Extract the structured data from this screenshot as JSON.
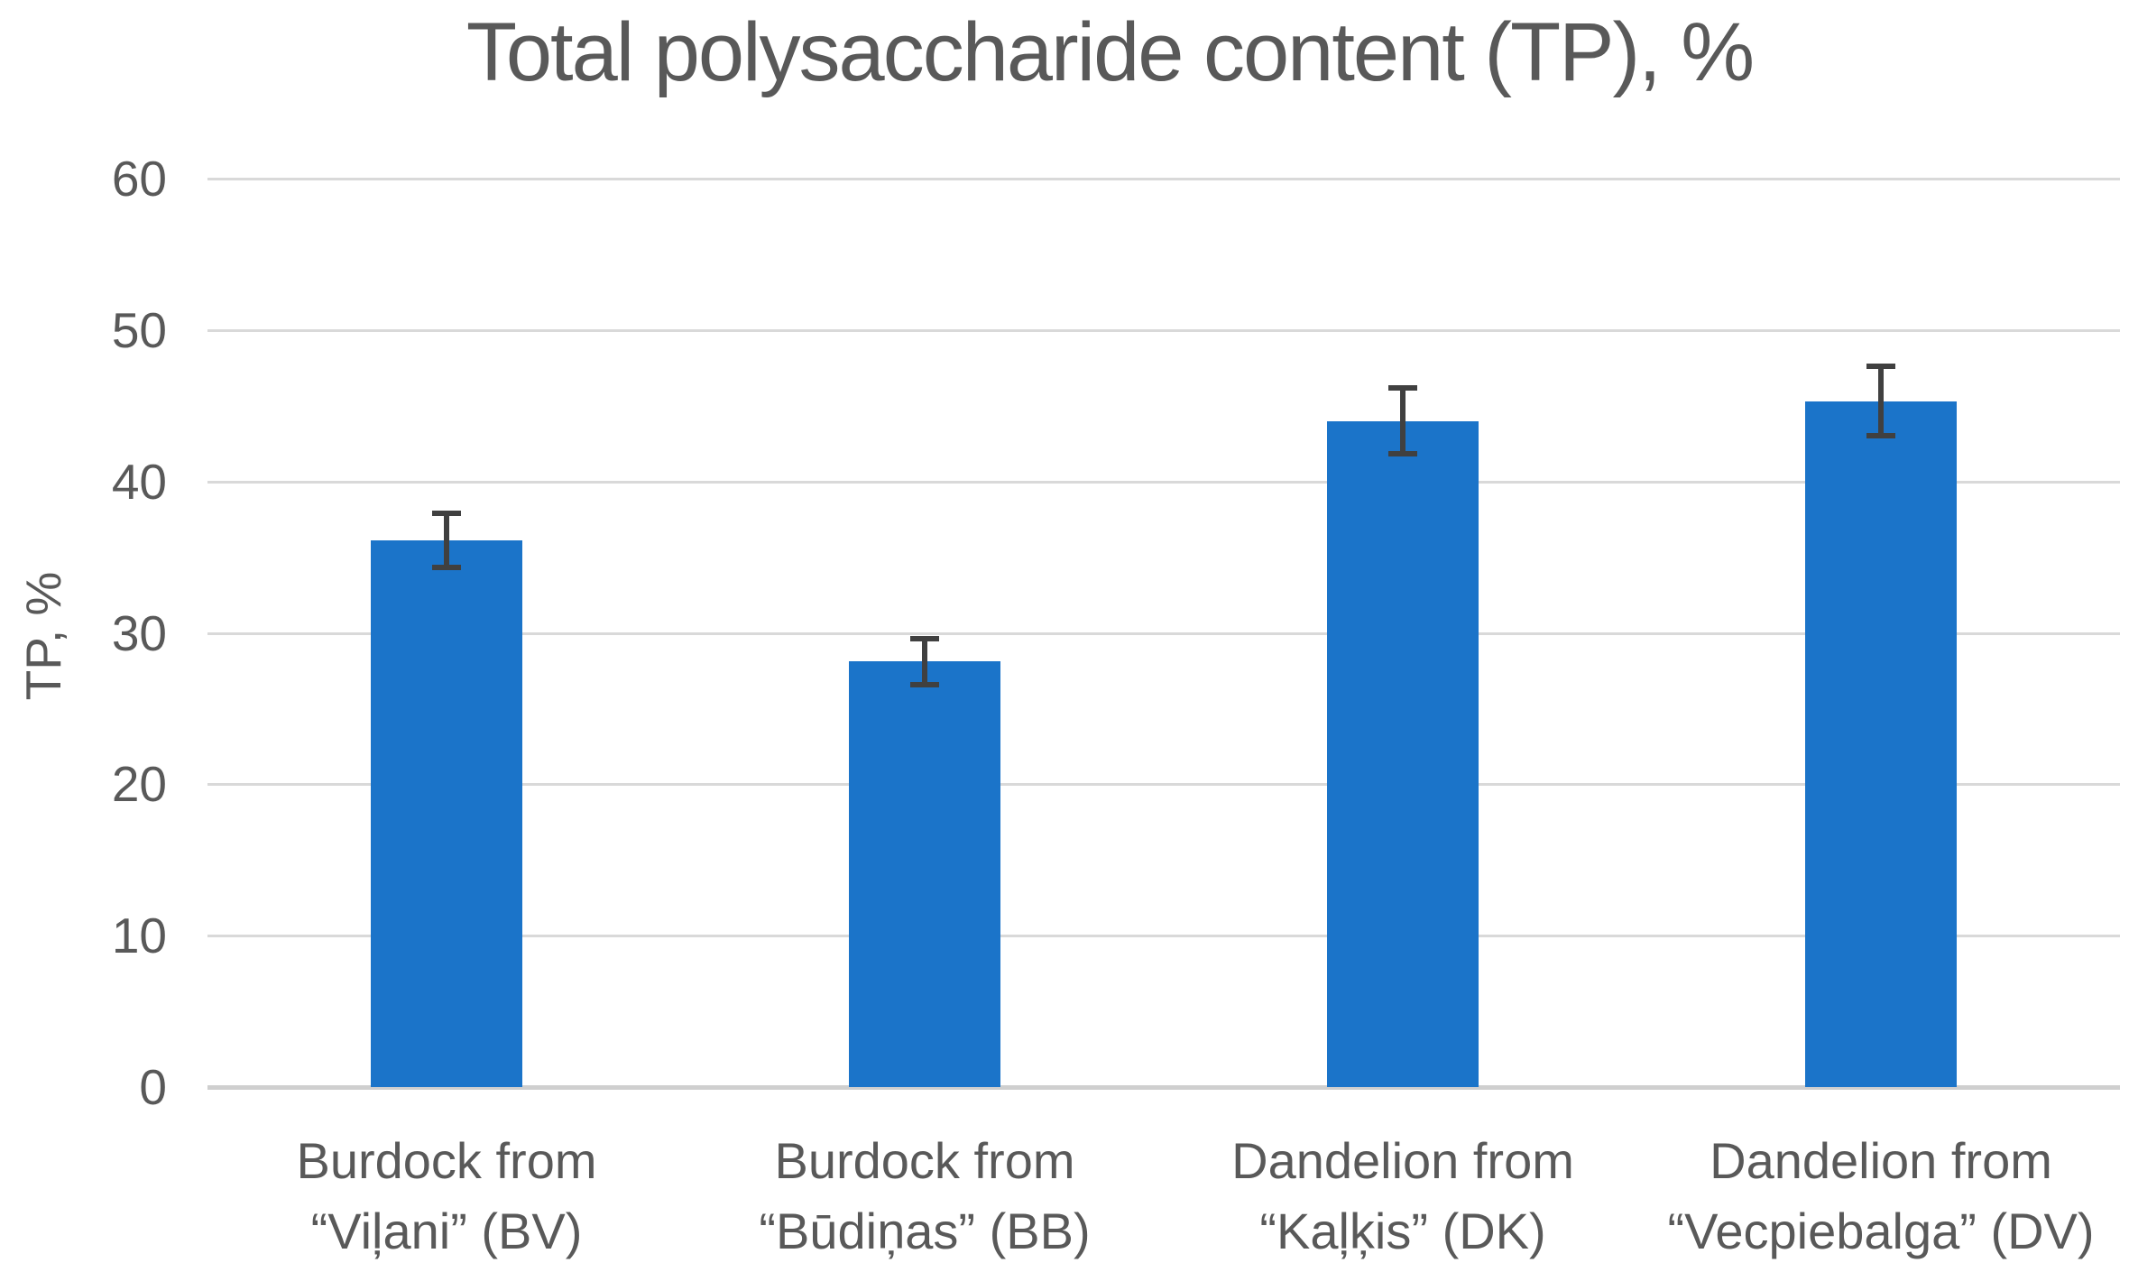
{
  "chart_data": {
    "type": "bar",
    "title": "Total polysaccharide content (TP), %",
    "xlabel": "",
    "ylabel": "TP, %",
    "ylim": [
      0,
      60
    ],
    "yticks": [
      0,
      10,
      20,
      30,
      40,
      50,
      60
    ],
    "grid": true,
    "legend": false,
    "categories": [
      "Burdock from\n“Viļani” (BV)",
      "Burdock from\n“Būdiņas” (BB)",
      "Dandelion from\n“Kaļķis” (DK)",
      "Dandelion from\n“Vecpiebalga” (DV)"
    ],
    "values": [
      36.1,
      28.1,
      44.0,
      45.3
    ],
    "error_bars": [
      1.8,
      1.5,
      2.2,
      2.3
    ],
    "colors": {
      "bar": "#1B74C9",
      "gridline": "#D9D9D9",
      "axis_line": "#CFCFCF",
      "error_bar": "#404040",
      "text": "#595959"
    }
  }
}
